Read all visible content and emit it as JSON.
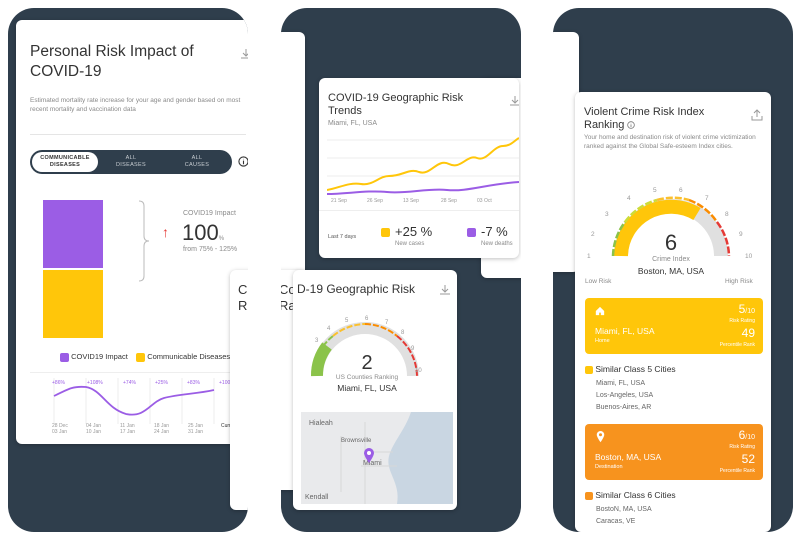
{
  "screen1": {
    "title": "Personal Risk Impact of COVID-19",
    "subtitle": "Estimated mortality rate increase for your age and gender based on most recent mortality and vaccination data",
    "tabs": [
      {
        "line1": "COMMUNICABLE",
        "line2": "DISEASES",
        "active": true
      },
      {
        "line1": "ALL",
        "line2": "DISEASES",
        "active": false
      },
      {
        "line1": "ALL",
        "line2": "CAUSES",
        "active": false
      }
    ],
    "impact_label": "COVID19 Impact",
    "impact_value": "100",
    "impact_unit": "%",
    "impact_range": "from 75% - 125%",
    "legend": [
      {
        "label": "COVID19 Impact",
        "color": "#9b5de5"
      },
      {
        "label": "Communicable Diseases",
        "color": "#ffc60a"
      }
    ],
    "trend_labels": [
      "+86%",
      "+108%",
      "+74%",
      "+25%",
      "+83%",
      "+100%"
    ],
    "trend_dates": [
      {
        "a": "28 Dec",
        "b": "03 Jan"
      },
      {
        "a": "04 Jan",
        "b": "10 Jan"
      },
      {
        "a": "11 Jan",
        "b": "17 Jan"
      },
      {
        "a": "18 Jan",
        "b": "24 Jan"
      },
      {
        "a": "25 Jan",
        "b": "31 Jan"
      }
    ],
    "trend_current": "Curren",
    "partial_card_title": "C",
    "partial_card_sub": "R"
  },
  "screen2": {
    "trends_title": "COVID-19 Geographic Risk Trends",
    "trends_location": "Miami, FL, USA",
    "trends_dates": [
      "21 Sep",
      "26 Sep",
      "13 Sep",
      "28 Sep",
      "03 Oct"
    ],
    "last_label": "Last 7 days",
    "new_cases_value": "+25 %",
    "new_cases_label": "New cases",
    "new_deaths_value": "-7 %",
    "new_deaths_label": "New deaths",
    "geo_title": "D-19 Geographic Risk",
    "gauge_ticks": [
      "3",
      "4",
      "5",
      "6",
      "7",
      "8",
      "9",
      "10"
    ],
    "gauge_value": "2",
    "gauge_caption": "US Counties Ranking",
    "gauge_location": "Miami, FL, USA",
    "map_labels": {
      "hialeah": "Hialeah",
      "brownsville": "Brownsville",
      "miami": "Miami",
      "kendall": "Kendall"
    },
    "partial_left_title": "Co",
    "partial_left_sub": "Ra"
  },
  "screen3": {
    "title": "Violent Crime Risk Index Ranking",
    "subtitle": "Your home and destination risk of violent crime victimization ranked against the Global Safe-esteem Index cities.",
    "gauge_ticks": [
      "1",
      "2",
      "3",
      "4",
      "5",
      "6",
      "7",
      "8",
      "9",
      "10"
    ],
    "gauge_value": "6",
    "gauge_caption": "Crime Index",
    "gauge_location": "Boston, MA, USA",
    "low_label": "Low Risk",
    "high_label": "High Risk",
    "home_card": {
      "rating": "5",
      "rating_of": "/10",
      "rating_label": "Risk Rating",
      "city": "Miami, FL, USA",
      "percentile": "49",
      "percentile_label": "Percentile Rank",
      "type": "Home",
      "color": "#ffc60a"
    },
    "similar5_title": "Similar Class 5 Cities",
    "similar5": [
      "Miami, FL, USA",
      "Los-Angeles, USA",
      "Buenos-Aires, AR"
    ],
    "dest_card": {
      "rating": "6",
      "rating_of": "/10",
      "rating_label": "Risk Rating",
      "city": "Boston, MA, USA",
      "percentile": "52",
      "percentile_label": "Percentile Rank",
      "type": "Destination",
      "color": "#f7931e"
    },
    "similar6_title": "Similar Class 6 Cities",
    "similar6": [
      "BostoN, MA, USA",
      "Caracas, VE"
    ]
  }
}
